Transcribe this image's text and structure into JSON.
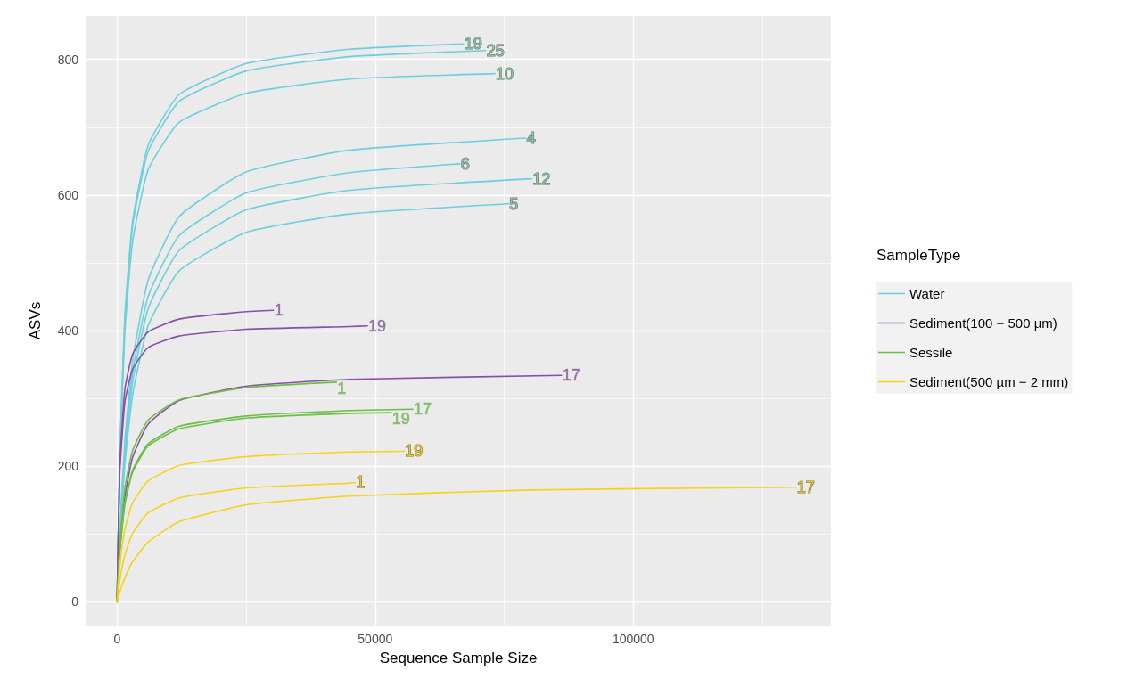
{
  "chart_data": {
    "type": "line",
    "xlabel": "Sequence Sample Size",
    "ylabel": "ASVs",
    "legend_title": "SampleType",
    "legend": "right",
    "grid": true,
    "line_style": "solid",
    "marker": "none",
    "xlim": [
      -6100,
      138300
    ],
    "ylim": [
      -35,
      864
    ],
    "xticks": [
      0,
      {
        "value": 25000,
        "label": null
      },
      50000,
      {
        "value": 75000,
        "label": null
      },
      100000,
      {
        "value": 125000,
        "label": null
      }
    ],
    "yticks": [
      0,
      {
        "value": 100,
        "label": null
      },
      200,
      {
        "value": 300,
        "label": null
      },
      400,
      {
        "value": 500,
        "label": null
      },
      600,
      {
        "value": 700,
        "label": null
      },
      800
    ],
    "series": [
      {
        "name": "Water",
        "color": "#6ccfdf",
        "x": [
          0,
          500,
          1500,
          3000,
          6000,
          12000,
          25000,
          45000,
          67100
        ],
        "values": [
          0,
          210,
          421,
          561,
          673,
          748,
          794,
          815,
          823
        ]
      },
      {
        "color": "#6ccfdf",
        "x": [
          0,
          500,
          1500,
          3000,
          6000,
          12000,
          25000,
          45000,
          71400
        ],
        "values": [
          0,
          208,
          415,
          554,
          664,
          738,
          783,
          804,
          813
        ]
      },
      {
        "color": "#6ccfdf",
        "x": [
          0,
          500,
          1500,
          3000,
          6000,
          12000,
          25000,
          45000,
          73200
        ],
        "values": [
          0,
          199,
          398,
          531,
          637,
          707,
          750,
          771,
          779
        ]
      },
      {
        "color": "#6ccfdf",
        "x": [
          0,
          500,
          1500,
          3000,
          6000,
          12000,
          25000,
          45000,
          79200
        ],
        "values": [
          0,
          102,
          237,
          355,
          474,
          568,
          634,
          666,
          684
        ]
      },
      {
        "color": "#6ccfdf",
        "x": [
          0,
          500,
          1500,
          3000,
          6000,
          12000,
          25000,
          45000,
          66400
        ],
        "values": [
          0,
          97,
          225,
          338,
          450,
          540,
          603,
          633,
          646
        ]
      },
      {
        "color": "#6ccfdf",
        "x": [
          0,
          500,
          1500,
          3000,
          6000,
          12000,
          25000,
          45000,
          80300
        ],
        "values": [
          0,
          93,
          215,
          324,
          432,
          518,
          578,
          607,
          624
        ]
      },
      {
        "color": "#6ccfdf",
        "x": [
          0,
          500,
          1500,
          3000,
          6000,
          12000,
          25000,
          45000,
          75800
        ],
        "values": [
          0,
          87,
          203,
          305,
          407,
          488,
          545,
          572,
          587
        ]
      },
      {
        "name": "Sediment(100 − 500 µm)",
        "color": "#8a4fa5",
        "x": [
          0,
          500,
          1500,
          3000,
          6000,
          12000,
          25000,
          30300
        ],
        "values": [
          0,
          199,
          313,
          365,
          398,
          417,
          428,
          430
        ]
      },
      {
        "color": "#8a4fa5",
        "x": [
          0,
          500,
          1500,
          3000,
          6000,
          12000,
          25000,
          45000,
          48500
        ],
        "values": [
          0,
          187,
          294,
          343,
          375,
          392,
          402,
          406,
          407
        ]
      },
      {
        "color": "#8a4fa5",
        "x": [
          0,
          500,
          1500,
          3000,
          6000,
          12000,
          25000,
          45000,
          86100
        ],
        "values": [
          0,
          74,
          155,
          213,
          262,
          297,
          318,
          328,
          334
        ]
      },
      {
        "name": "Sessile",
        "color": "#6abf45",
        "x": [
          0,
          500,
          1500,
          3000,
          6000,
          12000,
          25000,
          42500
        ],
        "values": [
          0,
          84,
          168,
          223,
          268,
          298,
          316,
          324
        ]
      },
      {
        "color": "#6abf45",
        "x": [
          0,
          500,
          1500,
          3000,
          6000,
          12000,
          25000,
          45000,
          57300
        ],
        "values": [
          0,
          73,
          146,
          194,
          233,
          259,
          274,
          282,
          284
        ]
      },
      {
        "color": "#6abf45",
        "x": [
          0,
          500,
          1500,
          3000,
          6000,
          12000,
          25000,
          45000,
          53100
        ],
        "values": [
          0,
          72,
          143,
          191,
          230,
          255,
          271,
          278,
          279
        ]
      },
      {
        "name": "Sediment(500 µm − 2 mm)",
        "color": "#f5d316",
        "x": [
          0,
          500,
          1500,
          3000,
          6000,
          12000,
          25000,
          45000,
          55600
        ],
        "values": [
          0,
          52,
          107,
          146,
          178,
          201,
          214,
          221,
          222
        ]
      },
      {
        "color": "#f5d316",
        "x": [
          0,
          500,
          1500,
          3000,
          6000,
          12000,
          25000,
          45000,
          46100
        ],
        "values": [
          0,
          31,
          69,
          101,
          131,
          153,
          168,
          175,
          176
        ]
      },
      {
        "color": "#f5d316",
        "x": [
          0,
          500,
          1500,
          3000,
          6000,
          12000,
          25000,
          45000,
          80000,
          131500
        ],
        "values": [
          0,
          14,
          35,
          59,
          88,
          118,
          143,
          156,
          165,
          169
        ]
      }
    ],
    "annotations": [
      {
        "text": "19",
        "x": 67100,
        "y": 823
      },
      {
        "text": "25",
        "x": 71400,
        "y": 813
      },
      {
        "text": "10",
        "x": 73200,
        "y": 779
      },
      {
        "text": "4",
        "x": 79200,
        "y": 684
      },
      {
        "text": "6",
        "x": 66400,
        "y": 646
      },
      {
        "text": "12",
        "x": 80300,
        "y": 624
      },
      {
        "text": "5",
        "x": 75800,
        "y": 587
      },
      {
        "text": "1",
        "x": 30300,
        "y": 430
      },
      {
        "text": "19",
        "x": 48500,
        "y": 407
      },
      {
        "text": "17",
        "x": 86100,
        "y": 334
      },
      {
        "text": "1",
        "x": 42500,
        "y": 324
      },
      {
        "text": "17",
        "x": 57300,
        "y": 284
      },
      {
        "text": "19",
        "x": 53100,
        "y": 279
      },
      {
        "text": "19",
        "x": 55600,
        "y": 222
      },
      {
        "text": "1",
        "x": 46100,
        "y": 176
      },
      {
        "text": "17",
        "x": 131500,
        "y": 169
      }
    ]
  }
}
